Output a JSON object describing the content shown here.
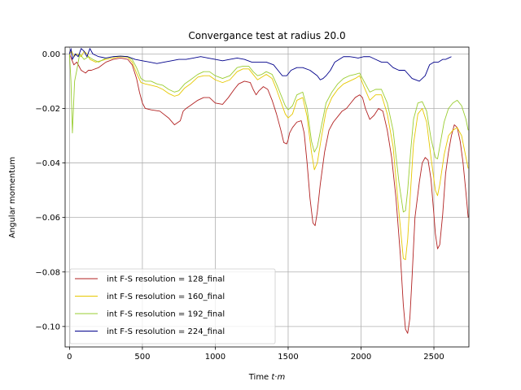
{
  "chart_data": {
    "type": "line",
    "title": "Convergance test at radius 20.0",
    "xlabel": "Time t·m",
    "xlabel_parts": {
      "prefix": "Time ",
      "var1": "t",
      "dot": "·",
      "var2": "m"
    },
    "ylabel": "Angular momentum",
    "xlim": [
      -30,
      2740
    ],
    "ylim": [
      -0.1075,
      0.0025
    ],
    "x_ticks": [
      0,
      500,
      1000,
      1500,
      2000,
      2500
    ],
    "x_tick_labels": [
      "0",
      "500",
      "1000",
      "1500",
      "2000",
      "2500"
    ],
    "y_ticks": [
      0.0,
      -0.02,
      -0.04,
      -0.06,
      -0.08,
      -0.1
    ],
    "y_tick_labels": [
      "0.00",
      "−0.02",
      "−0.04",
      "−0.06",
      "−0.08",
      "−0.10"
    ],
    "grid": true,
    "legend_position": "lower-left",
    "series": [
      {
        "name": "int F-S resolution = 128_final",
        "color": "#b22222",
        "x": [
          0,
          15,
          30,
          50,
          80,
          110,
          130,
          150,
          200,
          250,
          300,
          350,
          400,
          430,
          460,
          480,
          500,
          520,
          560,
          620,
          680,
          720,
          760,
          780,
          800,
          840,
          880,
          920,
          960,
          980,
          1000,
          1050,
          1090,
          1130,
          1160,
          1200,
          1240,
          1260,
          1280,
          1300,
          1330,
          1360,
          1390,
          1420,
          1450,
          1470,
          1490,
          1500,
          1510,
          1530,
          1560,
          1590,
          1610,
          1630,
          1650,
          1670,
          1685,
          1700,
          1720,
          1750,
          1780,
          1810,
          1840,
          1870,
          1900,
          1930,
          1960,
          1990,
          2010,
          2030,
          2060,
          2090,
          2120,
          2150,
          2180,
          2210,
          2240,
          2270,
          2290,
          2305,
          2320,
          2335,
          2350,
          2370,
          2400,
          2420,
          2440,
          2460,
          2480,
          2500,
          2510,
          2525,
          2540,
          2560,
          2580,
          2600,
          2620,
          2640,
          2660,
          2680,
          2700,
          2720,
          2735
        ],
        "y": [
          0.0,
          -0.002,
          -0.004,
          -0.003,
          -0.006,
          -0.007,
          -0.006,
          -0.006,
          -0.005,
          -0.003,
          -0.002,
          -0.0015,
          -0.002,
          -0.004,
          -0.009,
          -0.014,
          -0.018,
          -0.02,
          -0.0205,
          -0.021,
          -0.0235,
          -0.026,
          -0.0245,
          -0.021,
          -0.02,
          -0.0185,
          -0.017,
          -0.016,
          -0.016,
          -0.017,
          -0.018,
          -0.0185,
          -0.016,
          -0.013,
          -0.011,
          -0.01,
          -0.0105,
          -0.013,
          -0.015,
          -0.0135,
          -0.012,
          -0.013,
          -0.017,
          -0.022,
          -0.028,
          -0.0325,
          -0.033,
          -0.0315,
          -0.029,
          -0.027,
          -0.025,
          -0.0245,
          -0.029,
          -0.04,
          -0.053,
          -0.062,
          -0.063,
          -0.058,
          -0.048,
          -0.036,
          -0.028,
          -0.025,
          -0.023,
          -0.021,
          -0.02,
          -0.018,
          -0.016,
          -0.015,
          -0.016,
          -0.02,
          -0.024,
          -0.0225,
          -0.02,
          -0.021,
          -0.028,
          -0.038,
          -0.053,
          -0.074,
          -0.092,
          -0.101,
          -0.1025,
          -0.097,
          -0.082,
          -0.06,
          -0.047,
          -0.04,
          -0.038,
          -0.039,
          -0.046,
          -0.059,
          -0.066,
          -0.0715,
          -0.07,
          -0.059,
          -0.044,
          -0.036,
          -0.03,
          -0.026,
          -0.027,
          -0.032,
          -0.04,
          -0.051,
          -0.06
        ]
      },
      {
        "name": "int F-S resolution = 160_final",
        "color": "#e6c800",
        "x": [
          0,
          15,
          30,
          50,
          80,
          100,
          120,
          140,
          180,
          250,
          300,
          350,
          400,
          430,
          460,
          490,
          520,
          560,
          600,
          640,
          680,
          720,
          750,
          790,
          830,
          880,
          920,
          960,
          1000,
          1050,
          1100,
          1150,
          1190,
          1230,
          1260,
          1290,
          1320,
          1350,
          1390,
          1420,
          1450,
          1480,
          1500,
          1530,
          1560,
          1600,
          1630,
          1660,
          1680,
          1700,
          1730,
          1760,
          1800,
          1840,
          1880,
          1920,
          1960,
          1990,
          2020,
          2060,
          2100,
          2140,
          2180,
          2220,
          2260,
          2290,
          2305,
          2320,
          2340,
          2360,
          2390,
          2420,
          2450,
          2480,
          2510,
          2525,
          2540,
          2570,
          2600,
          2630,
          2660,
          2690,
          2720,
          2735
        ],
        "y": [
          0.0,
          0.001,
          -0.001,
          0.0,
          -0.001,
          0.001,
          0.0,
          -0.002,
          -0.003,
          -0.002,
          -0.0015,
          -0.001,
          -0.0012,
          -0.003,
          -0.007,
          -0.0105,
          -0.011,
          -0.0115,
          -0.012,
          -0.013,
          -0.0145,
          -0.0155,
          -0.015,
          -0.0125,
          -0.011,
          -0.0085,
          -0.008,
          -0.008,
          -0.0095,
          -0.0105,
          -0.0095,
          -0.0065,
          -0.0055,
          -0.0055,
          -0.0075,
          -0.0095,
          -0.0085,
          -0.0075,
          -0.009,
          -0.013,
          -0.0175,
          -0.022,
          -0.0235,
          -0.022,
          -0.017,
          -0.016,
          -0.023,
          -0.036,
          -0.0425,
          -0.04,
          -0.03,
          -0.021,
          -0.016,
          -0.013,
          -0.011,
          -0.01,
          -0.009,
          -0.008,
          -0.012,
          -0.017,
          -0.015,
          -0.015,
          -0.022,
          -0.034,
          -0.058,
          -0.075,
          -0.0755,
          -0.068,
          -0.05,
          -0.033,
          -0.022,
          -0.02,
          -0.025,
          -0.038,
          -0.05,
          -0.052,
          -0.048,
          -0.037,
          -0.03,
          -0.028,
          -0.027,
          -0.03,
          -0.038,
          -0.042
        ]
      },
      {
        "name": "int F-S resolution = 192_final",
        "color": "#9acd32",
        "x": [
          0,
          10,
          20,
          35,
          50,
          70,
          100,
          130,
          160,
          200,
          250,
          300,
          350,
          400,
          430,
          460,
          490,
          520,
          560,
          600,
          640,
          680,
          720,
          750,
          790,
          830,
          880,
          920,
          960,
          1000,
          1050,
          1100,
          1150,
          1190,
          1230,
          1260,
          1290,
          1320,
          1350,
          1390,
          1420,
          1450,
          1480,
          1500,
          1530,
          1560,
          1600,
          1630,
          1660,
          1680,
          1700,
          1730,
          1760,
          1800,
          1840,
          1880,
          1920,
          1960,
          1990,
          2020,
          2060,
          2100,
          2140,
          2180,
          2220,
          2260,
          2290,
          2305,
          2320,
          2340,
          2360,
          2390,
          2420,
          2450,
          2480,
          2510,
          2525,
          2540,
          2570,
          2600,
          2630,
          2660,
          2690,
          2720,
          2735
        ],
        "y": [
          0.0,
          -0.01,
          -0.029,
          -0.01,
          -0.006,
          0.0,
          -0.002,
          -0.001,
          -0.002,
          -0.003,
          -0.0015,
          -0.001,
          -0.0008,
          -0.001,
          -0.002,
          -0.005,
          -0.009,
          -0.01,
          -0.01,
          -0.011,
          -0.0115,
          -0.013,
          -0.014,
          -0.0135,
          -0.011,
          -0.0095,
          -0.0075,
          -0.0065,
          -0.0065,
          -0.008,
          -0.009,
          -0.008,
          -0.005,
          -0.0045,
          -0.0045,
          -0.0065,
          -0.008,
          -0.0075,
          -0.0065,
          -0.0075,
          -0.011,
          -0.015,
          -0.019,
          -0.0205,
          -0.019,
          -0.015,
          -0.014,
          -0.02,
          -0.032,
          -0.036,
          -0.034,
          -0.026,
          -0.018,
          -0.014,
          -0.011,
          -0.009,
          -0.008,
          -0.0075,
          -0.007,
          -0.01,
          -0.014,
          -0.013,
          -0.013,
          -0.018,
          -0.028,
          -0.047,
          -0.058,
          -0.0575,
          -0.05,
          -0.036,
          -0.024,
          -0.018,
          -0.0175,
          -0.021,
          -0.031,
          -0.038,
          -0.0385,
          -0.034,
          -0.025,
          -0.02,
          -0.018,
          -0.017,
          -0.019,
          -0.024,
          -0.028
        ]
      },
      {
        "name": "int F-S resolution = 224_final",
        "color": "#00008b",
        "x": [
          0,
          10,
          20,
          40,
          60,
          80,
          100,
          120,
          140,
          160,
          200,
          250,
          300,
          350,
          400,
          450,
          500,
          550,
          600,
          650,
          700,
          750,
          800,
          850,
          900,
          950,
          1000,
          1050,
          1100,
          1150,
          1200,
          1250,
          1300,
          1350,
          1400,
          1430,
          1460,
          1490,
          1520,
          1560,
          1600,
          1650,
          1700,
          1720,
          1740,
          1760,
          1790,
          1820,
          1850,
          1880,
          1920,
          1950,
          1980,
          2020,
          2060,
          2100,
          2140,
          2180,
          2220,
          2260,
          2300,
          2350,
          2400,
          2440,
          2470,
          2500,
          2530,
          2560,
          2580,
          2600,
          2620
        ],
        "y": [
          0.0,
          0.002,
          -0.002,
          0.0,
          -0.001,
          0.002,
          0.001,
          -0.001,
          0.002,
          0.0,
          -0.001,
          -0.0015,
          -0.001,
          -0.0008,
          -0.001,
          -0.002,
          -0.0025,
          -0.003,
          -0.0035,
          -0.003,
          -0.0025,
          -0.002,
          -0.002,
          -0.0015,
          -0.001,
          -0.0015,
          -0.002,
          -0.0025,
          -0.002,
          -0.0015,
          -0.002,
          -0.003,
          -0.003,
          -0.003,
          -0.004,
          -0.006,
          -0.008,
          -0.008,
          -0.006,
          -0.005,
          -0.005,
          -0.006,
          -0.008,
          -0.0095,
          -0.009,
          -0.008,
          -0.006,
          -0.003,
          -0.002,
          -0.001,
          -0.001,
          -0.0012,
          -0.0015,
          -0.001,
          -0.001,
          -0.002,
          -0.003,
          -0.003,
          -0.005,
          -0.006,
          -0.006,
          -0.009,
          -0.01,
          -0.008,
          -0.004,
          -0.003,
          -0.003,
          -0.002,
          -0.002,
          -0.0015,
          -0.001
        ]
      }
    ]
  }
}
